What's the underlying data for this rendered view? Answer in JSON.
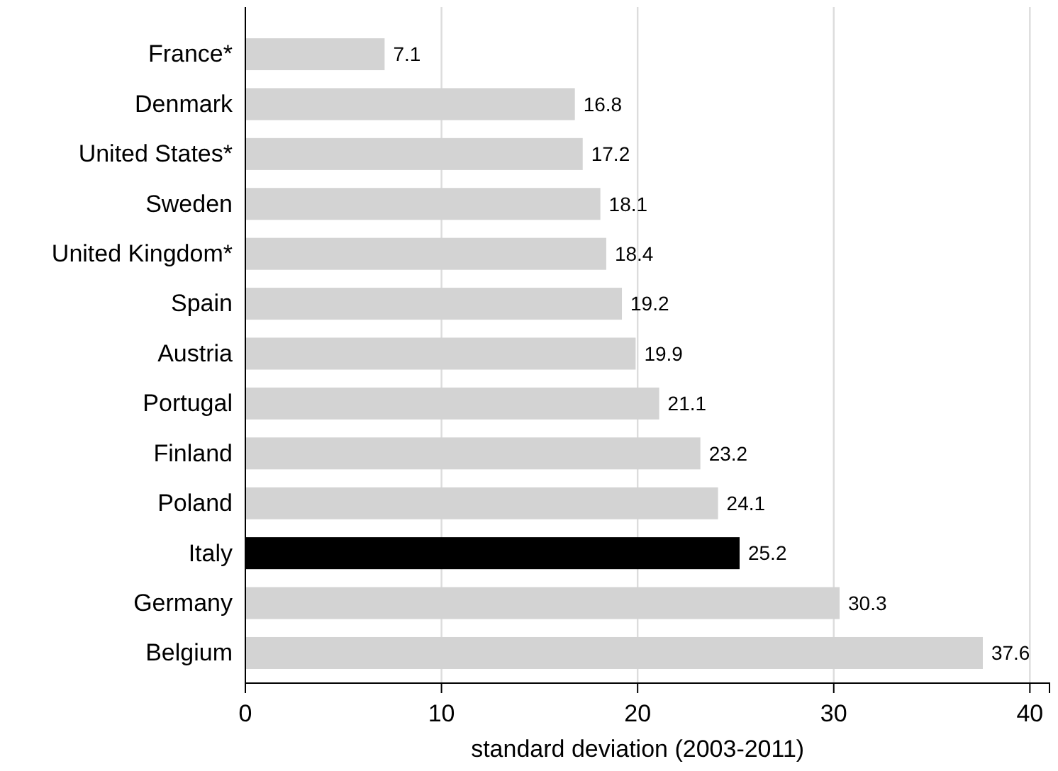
{
  "chart_data": {
    "type": "bar",
    "orientation": "horizontal",
    "xlabel": "standard deviation (2003-2011)",
    "categories": [
      "France*",
      "Denmark",
      "United States*",
      "Sweden",
      "United Kingdom*",
      "Spain",
      "Austria",
      "Portugal",
      "Finland",
      "Poland",
      "Italy",
      "Germany",
      "Belgium"
    ],
    "values": [
      7.1,
      16.8,
      17.2,
      18.1,
      18.4,
      19.2,
      19.9,
      21.1,
      23.2,
      24.1,
      25.2,
      30.3,
      37.6
    ],
    "colors": [
      "#d3d3d3",
      "#d3d3d3",
      "#d3d3d3",
      "#d3d3d3",
      "#d3d3d3",
      "#d3d3d3",
      "#d3d3d3",
      "#d3d3d3",
      "#d3d3d3",
      "#d3d3d3",
      "#000000",
      "#d3d3d3",
      "#d3d3d3"
    ],
    "xlim": [
      0,
      41
    ],
    "xticks": [
      0,
      10,
      20,
      30,
      40
    ],
    "grid": "x",
    "data_labels": true
  }
}
